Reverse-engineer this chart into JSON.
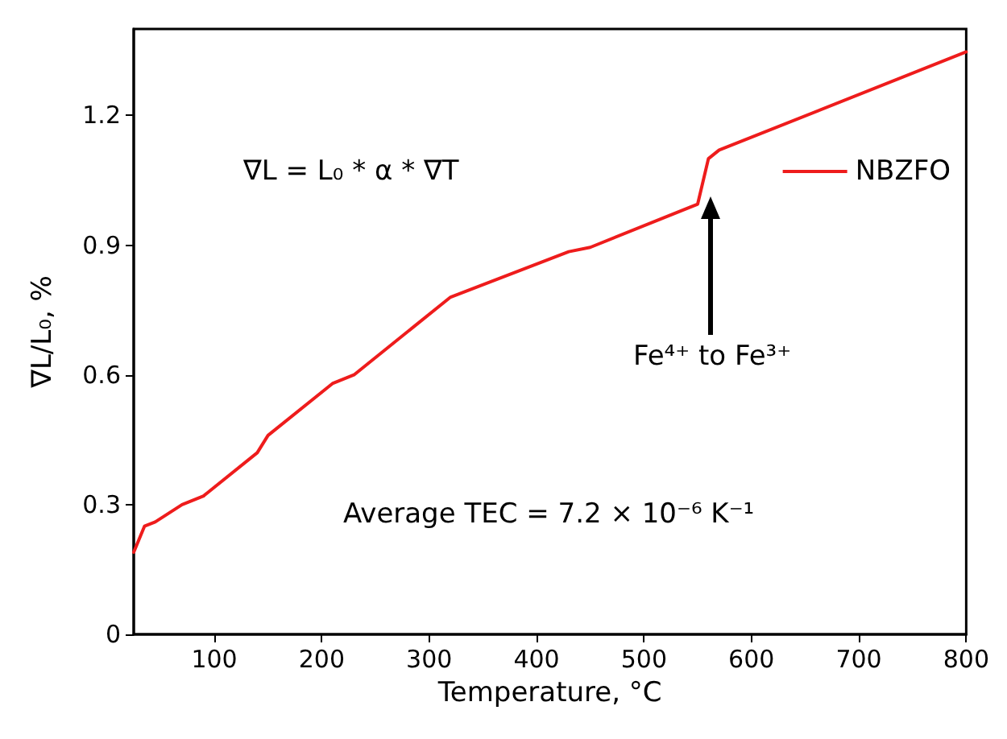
{
  "chart_data": {
    "type": "line",
    "xlabel": "Temperature, °C",
    "ylabel": "∇L/L₀, %",
    "x": [
      25,
      35,
      45,
      70,
      90,
      140,
      150,
      210,
      230,
      320,
      430,
      450,
      550,
      560,
      570,
      800
    ],
    "series": [
      {
        "name": "NBZFO",
        "color": "#ee1c1c",
        "values": [
          0.19,
          0.25,
          0.26,
          0.3,
          0.32,
          0.42,
          0.46,
          0.58,
          0.6,
          0.78,
          0.885,
          0.895,
          0.995,
          1.1,
          1.12,
          1.347
        ]
      }
    ],
    "xlim": [
      25,
      800
    ],
    "xticks": [
      100,
      200,
      300,
      400,
      500,
      600,
      700,
      800
    ],
    "ylim": [
      0,
      1.4
    ],
    "yticks": [
      0,
      0.3,
      0.6,
      0.9,
      1.2
    ],
    "grid": false,
    "legend": "top right",
    "marker": "none",
    "line_style": "solid",
    "annotations": [
      "∇L = L₀ * α * ∇T",
      "Fe⁴⁺ to Fe³⁺",
      "Average TEC = 7.2 × 10⁻⁶ K⁻¹"
    ]
  }
}
